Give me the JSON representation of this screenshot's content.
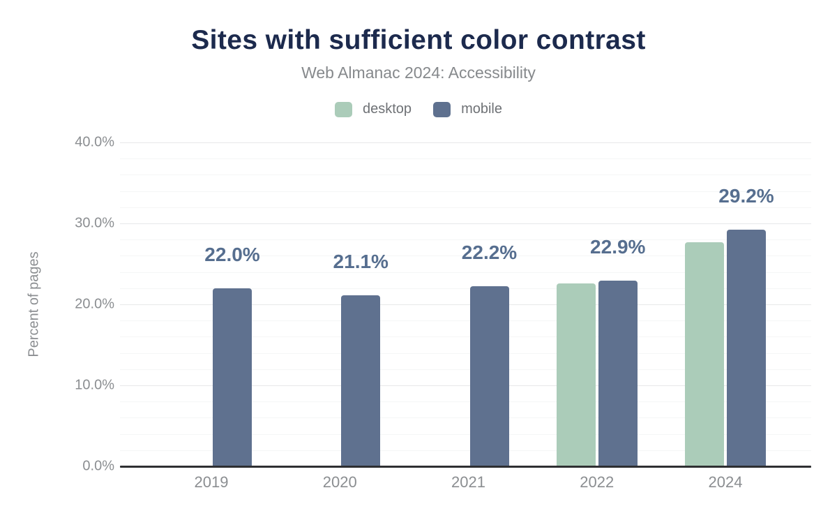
{
  "header": {
    "title": "Sites with sufficient color contrast",
    "subtitle": "Web Almanac 2024: Accessibility"
  },
  "chart_data": {
    "type": "bar",
    "title": "Sites with sufficient color contrast",
    "subtitle": "Web Almanac 2024: Accessibility",
    "categories": [
      "2019",
      "2020",
      "2021",
      "2022",
      "2024"
    ],
    "series": [
      {
        "name": "desktop",
        "color": "#abccb9",
        "values": [
          null,
          null,
          null,
          22.6,
          27.7
        ]
      },
      {
        "name": "mobile",
        "color": "#5f718f",
        "values": [
          22.0,
          21.1,
          22.2,
          22.9,
          29.2
        ]
      }
    ],
    "data_labels": [
      "22.0%",
      "21.1%",
      "22.2%",
      "22.9%",
      "29.2%"
    ],
    "data_label_series": "mobile",
    "xlabel": "",
    "ylabel": "Percent of pages",
    "y_ticks": [
      {
        "value": 0,
        "label": "0.0%"
      },
      {
        "value": 10,
        "label": "10.0%"
      },
      {
        "value": 20,
        "label": "20.0%"
      },
      {
        "value": 30,
        "label": "30.0%"
      },
      {
        "value": 40,
        "label": "40.0%"
      }
    ],
    "ylim": [
      0,
      40
    ],
    "minor_grid_step_percent": 2,
    "grid": true,
    "legend_position": "top",
    "colors": {
      "title": "#1c2a4d",
      "subtitle": "#86898c",
      "axis_text": "#8b8e91",
      "legend_text": "#6e7175",
      "value_label": "#566e8f",
      "axis_line": "#2e2f32",
      "gridline_major": "#e7e8e9",
      "gridline_minor": "#f5f6f6",
      "background": "#ffffff"
    }
  }
}
